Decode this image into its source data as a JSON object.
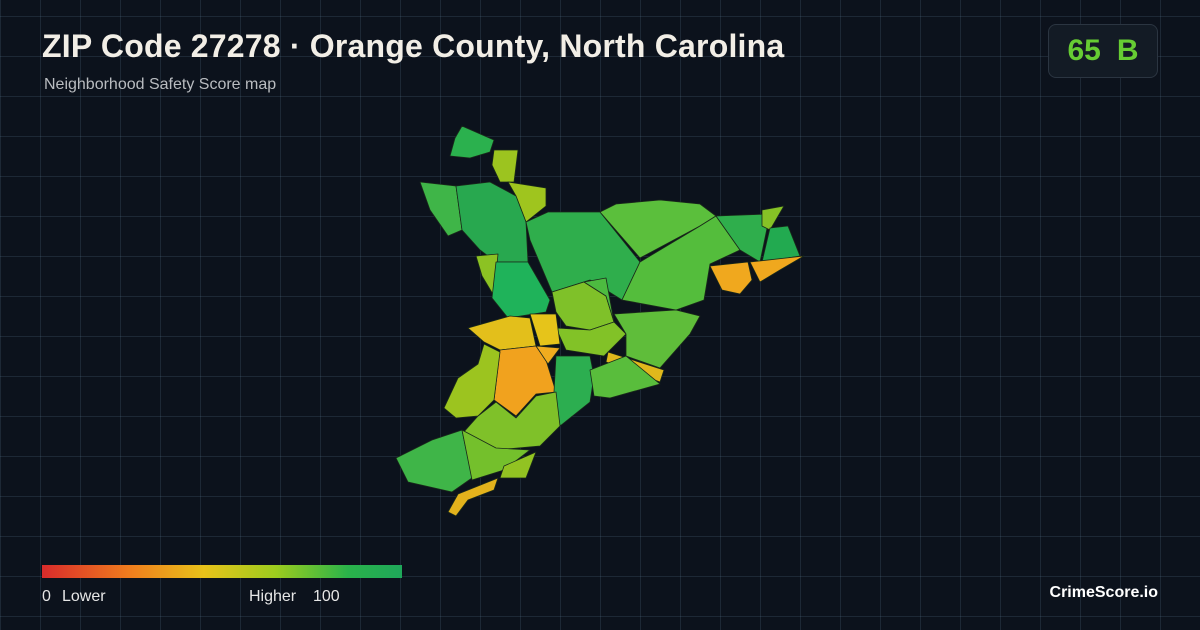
{
  "header": {
    "title": "ZIP Code 27278 · Orange County, North Carolina",
    "subtitle": "Neighborhood Safety Score map"
  },
  "score": {
    "value": 65,
    "grade": "B"
  },
  "legend": {
    "min": 0,
    "low_label": "Lower",
    "high_label": "Higher",
    "max": 100
  },
  "footer": {
    "brand": "CrimeScore.io"
  }
}
